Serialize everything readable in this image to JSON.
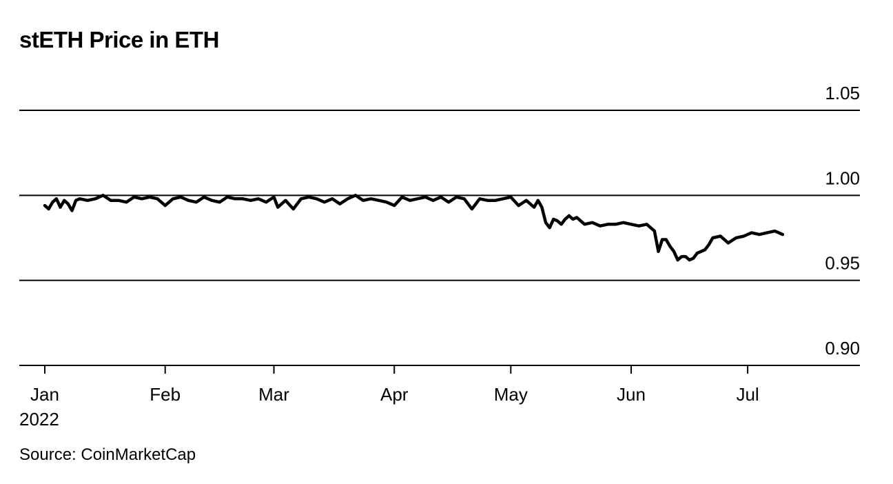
{
  "title": "stETH Price in ETH",
  "source": "Source: CoinMarketCap",
  "chart_data": {
    "type": "line",
    "title": "stETH Price in ETH",
    "ylim": [
      0.9,
      1.05
    ],
    "y_ticks": [
      "1.05",
      "1.00",
      "0.95",
      "0.90"
    ],
    "y_tick_values": [
      1.05,
      1.0,
      0.95,
      0.9
    ],
    "x_tick_labels": [
      "Jan",
      "Feb",
      "Mar",
      "Apr",
      "May",
      "Jun",
      "Jul"
    ],
    "x_tick_dates": [
      "2022-01-01",
      "2022-02-01",
      "2022-03-01",
      "2022-04-01",
      "2022-05-01",
      "2022-06-01",
      "2022-07-01"
    ],
    "x_year_label": "2022",
    "grid": "horizontal",
    "line_color": "#000000",
    "series": [
      {
        "x": [
          "2022-01-01",
          "2022-01-02",
          "2022-01-03",
          "2022-01-04",
          "2022-01-05",
          "2022-01-06",
          "2022-01-07",
          "2022-01-08",
          "2022-01-09",
          "2022-01-10",
          "2022-01-12",
          "2022-01-14",
          "2022-01-16",
          "2022-01-18",
          "2022-01-19",
          "2022-01-20",
          "2022-01-22",
          "2022-01-24",
          "2022-01-26",
          "2022-01-28",
          "2022-01-30",
          "2022-02-01",
          "2022-02-03",
          "2022-02-05",
          "2022-02-07",
          "2022-02-09",
          "2022-02-11",
          "2022-02-13",
          "2022-02-15",
          "2022-02-17",
          "2022-02-19",
          "2022-02-21",
          "2022-02-23",
          "2022-02-25",
          "2022-02-27",
          "2022-03-01",
          "2022-03-02",
          "2022-03-04",
          "2022-03-06",
          "2022-03-08",
          "2022-03-10",
          "2022-03-12",
          "2022-03-14",
          "2022-03-16",
          "2022-03-18",
          "2022-03-20",
          "2022-03-22",
          "2022-03-24",
          "2022-03-26",
          "2022-03-28",
          "2022-03-30",
          "2022-04-01",
          "2022-04-03",
          "2022-04-05",
          "2022-04-07",
          "2022-04-09",
          "2022-04-11",
          "2022-04-13",
          "2022-04-15",
          "2022-04-17",
          "2022-04-19",
          "2022-04-21",
          "2022-04-23",
          "2022-04-25",
          "2022-04-27",
          "2022-04-29",
          "2022-05-01",
          "2022-05-03",
          "2022-05-05",
          "2022-05-07",
          "2022-05-08",
          "2022-05-09",
          "2022-05-10",
          "2022-05-11",
          "2022-05-12",
          "2022-05-13",
          "2022-05-14",
          "2022-05-15",
          "2022-05-16",
          "2022-05-17",
          "2022-05-18",
          "2022-05-20",
          "2022-05-22",
          "2022-05-24",
          "2022-05-26",
          "2022-05-28",
          "2022-05-30",
          "2022-06-01",
          "2022-06-03",
          "2022-06-05",
          "2022-06-07",
          "2022-06-08",
          "2022-06-09",
          "2022-06-10",
          "2022-06-11",
          "2022-06-12",
          "2022-06-13",
          "2022-06-14",
          "2022-06-15",
          "2022-06-16",
          "2022-06-17",
          "2022-06-18",
          "2022-06-19",
          "2022-06-20",
          "2022-06-21",
          "2022-06-22",
          "2022-06-24",
          "2022-06-26",
          "2022-06-28",
          "2022-06-30",
          "2022-07-02",
          "2022-07-04",
          "2022-07-06",
          "2022-07-08",
          "2022-07-10"
        ],
        "values": [
          0.994,
          0.992,
          0.996,
          0.998,
          0.993,
          0.997,
          0.995,
          0.991,
          0.997,
          0.998,
          0.997,
          0.998,
          1.0,
          0.997,
          0.997,
          0.997,
          0.996,
          0.999,
          0.998,
          0.999,
          0.998,
          0.994,
          0.998,
          0.999,
          0.997,
          0.996,
          0.999,
          0.997,
          0.996,
          0.999,
          0.998,
          0.998,
          0.997,
          0.998,
          0.996,
          0.999,
          0.993,
          0.997,
          0.992,
          0.998,
          0.999,
          0.998,
          0.996,
          0.998,
          0.995,
          0.998,
          1.0,
          0.997,
          0.998,
          0.997,
          0.996,
          0.994,
          0.999,
          0.997,
          0.998,
          0.999,
          0.997,
          0.999,
          0.996,
          0.999,
          0.998,
          0.992,
          0.998,
          0.997,
          0.997,
          0.998,
          0.999,
          0.994,
          0.997,
          0.993,
          0.997,
          0.993,
          0.984,
          0.981,
          0.986,
          0.985,
          0.983,
          0.986,
          0.988,
          0.986,
          0.987,
          0.983,
          0.984,
          0.982,
          0.983,
          0.983,
          0.984,
          0.983,
          0.982,
          0.983,
          0.979,
          0.967,
          0.974,
          0.974,
          0.97,
          0.967,
          0.962,
          0.964,
          0.964,
          0.962,
          0.963,
          0.966,
          0.967,
          0.968,
          0.971,
          0.975,
          0.976,
          0.972,
          0.975,
          0.976,
          0.978,
          0.977,
          0.978,
          0.979,
          0.977
        ]
      }
    ]
  }
}
